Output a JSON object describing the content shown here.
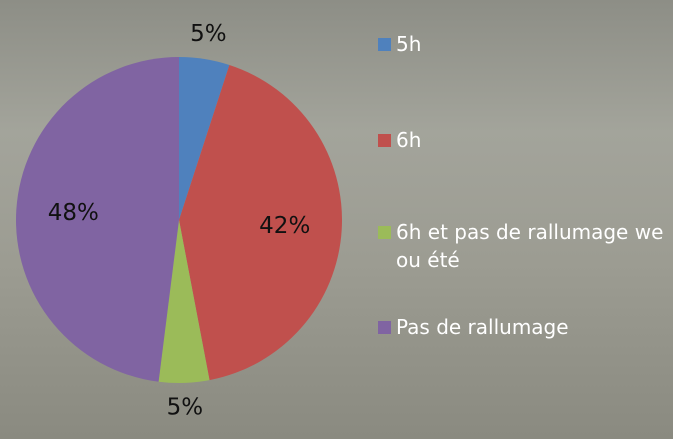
{
  "chart_data": {
    "type": "pie",
    "categories": [
      "5h",
      "6h",
      "6h et pas de rallumage we ou été",
      "Pas de rallumage"
    ],
    "values": [
      5,
      42,
      5,
      48
    ],
    "value_labels": [
      "5%",
      "42%",
      "5%",
      "48%"
    ],
    "colors": [
      "#4f81bd",
      "#c0504d",
      "#9bbb59",
      "#8064a2"
    ]
  }
}
